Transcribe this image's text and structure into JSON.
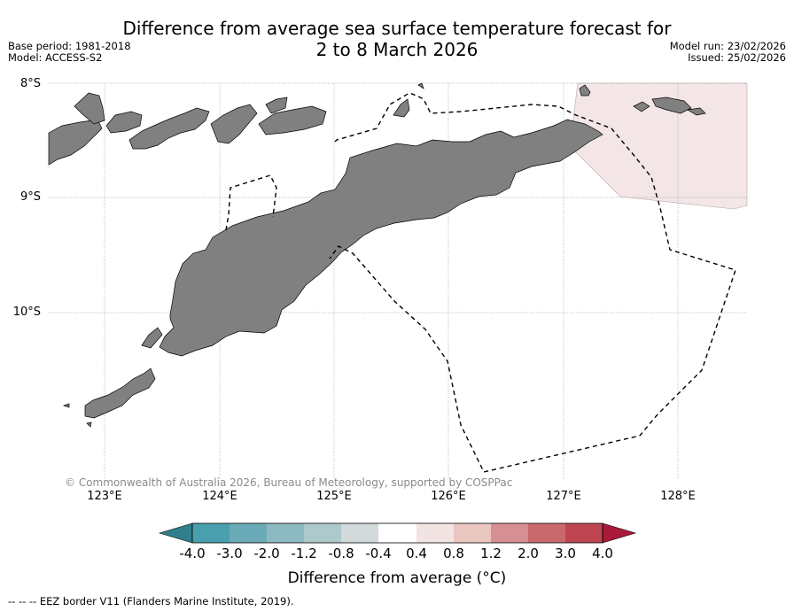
{
  "header": {
    "title_line1": "Difference from average sea surface temperature forecast for",
    "title_line2": "2 to 8 March 2026",
    "base_period": "Base period: 1981-2018",
    "model": "Model: ACCESS-S2",
    "model_run": "Model run: 23/02/2026",
    "issued": "Issued: 25/02/2026"
  },
  "map": {
    "lat_labels": [
      "8°S",
      "9°S",
      "10°S"
    ],
    "lon_labels": [
      "123°E",
      "124°E",
      "125°E",
      "126°E",
      "127°E",
      "128°E"
    ],
    "land_color": "#808080",
    "anomaly_fill_color": "#f4e6e6",
    "copyright": "© Commonwealth of Australia 2026, Bureau of Meteorology, supported by COSPPac"
  },
  "colorbar": {
    "ticks": [
      "-4.0",
      "-3.0",
      "-2.0",
      "-1.2",
      "-0.8",
      "-0.4",
      "0.4",
      "0.8",
      "1.2",
      "2.0",
      "3.0",
      "4.0"
    ],
    "colors": [
      "#2f7f8c",
      "#4a9fae",
      "#6aabb7",
      "#8cb9c2",
      "#adc9cc",
      "#d3dadb",
      "#ffffff",
      "#f3e4e4",
      "#e9c6c0",
      "#d68f94",
      "#c9696e",
      "#bf4553",
      "#a8193a"
    ],
    "title": "Difference from average (°C)"
  },
  "legend": {
    "eez_note": "--  --  -- EEZ border V11 (Flanders Marine Institute, 2019)."
  }
}
